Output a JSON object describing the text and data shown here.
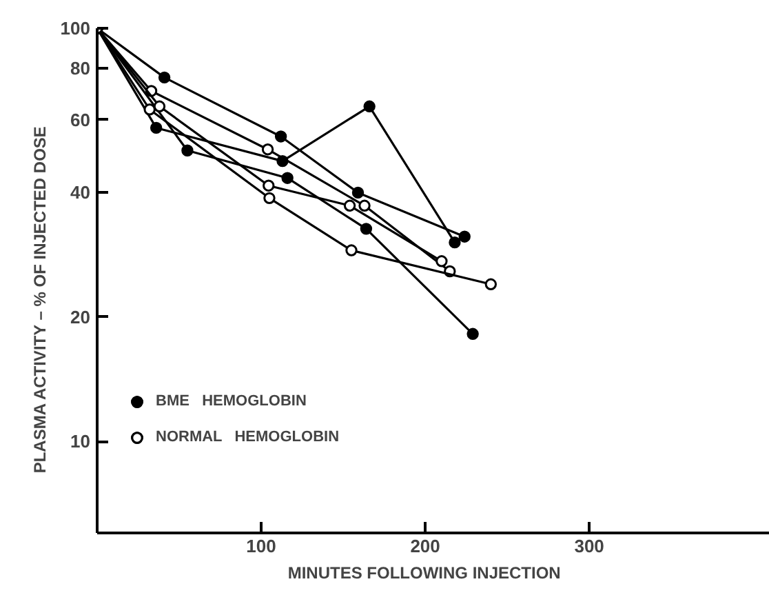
{
  "chart_data": {
    "type": "line",
    "xlabel": "MINUTES   FOLLOWING   INJECTION",
    "ylabel": "PLASMA   ACTIVITY – %   OF   INJECTED   DOSE",
    "log": "y",
    "xlim": [
      0,
      410
    ],
    "ylim": [
      6,
      100
    ],
    "xticks": [
      100,
      200,
      300
    ],
    "yticks": [
      10,
      20,
      40,
      60,
      80,
      100
    ],
    "grid": false,
    "legend": "left",
    "line_style": "solid",
    "series": [
      {
        "name": "BME   HEMOGLOBIN",
        "color": "#000000",
        "marker": "circle",
        "x": [
          0,
          41,
          112,
          159,
          224
        ],
        "values": [
          100,
          76,
          54.7,
          40,
          31.3
        ]
      },
      {
        "color": "#000000",
        "marker": "circle",
        "x": [
          0,
          36,
          113,
          166,
          218
        ],
        "values": [
          100,
          57.4,
          47.7,
          64.7,
          30.3
        ]
      },
      {
        "color": "#000000",
        "marker": "circle",
        "x": [
          0,
          55,
          116,
          164,
          229
        ],
        "values": [
          100,
          50.6,
          43.4,
          32.7,
          18.2
        ]
      },
      {
        "name": "NORMAL   HEMOGLOBIN",
        "color": "#000000",
        "marker": "open_circle",
        "x": [
          0,
          33,
          104,
          163,
          215
        ],
        "values": [
          100,
          70.5,
          50.9,
          37.2,
          25.8
        ]
      },
      {
        "color": "#000000",
        "marker": "open_circle",
        "x": [
          0,
          38,
          104.5,
          154,
          210
        ],
        "values": [
          100,
          64.7,
          41.6,
          37.2,
          27.3
        ]
      },
      {
        "color": "#000000",
        "marker": "open_circle",
        "x": [
          0,
          32,
          105,
          155,
          240
        ],
        "values": [
          100,
          63.6,
          38.8,
          29,
          24
        ]
      }
    ]
  }
}
